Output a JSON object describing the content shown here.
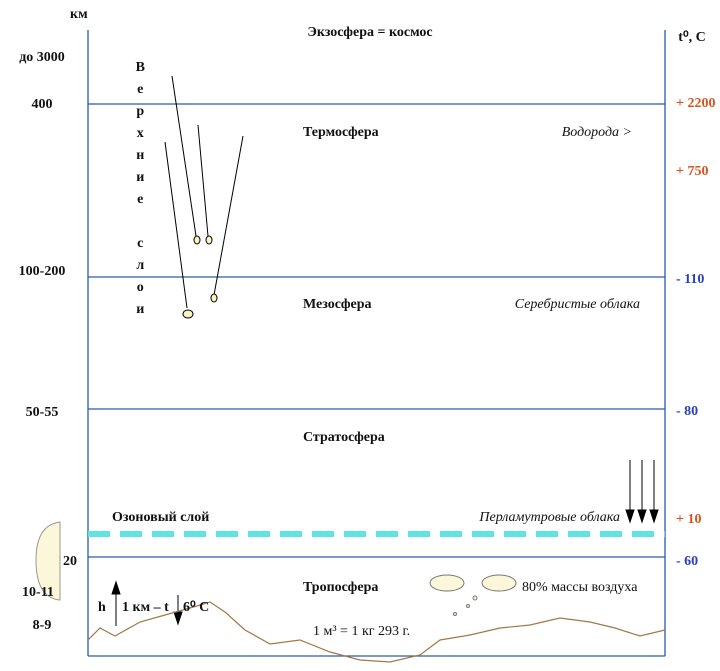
{
  "header": {
    "unit_left": "км",
    "unit_right": "t⁰, С",
    "top_left": "до 3000",
    "top_title": "Экзосфера = космос"
  },
  "left_labels": [
    "400",
    "100-200",
    "50-55",
    "20",
    "10-11",
    "8-9"
  ],
  "right_labels": [
    "+ 2200",
    "+ 750",
    "- 110",
    "- 80",
    "+ 10",
    "- 60"
  ],
  "vertical_text": "Верхние слои",
  "layers": [
    {
      "name": "Термосфера",
      "note": "Водорода >"
    },
    {
      "name": "Мезосфера",
      "note": "Серебристые облака"
    },
    {
      "name": "Стратосфера"
    },
    {
      "name": "Озоновый слой",
      "note": "Перламутровые облака"
    },
    {
      "name": "Тропосфера",
      "note": "80% массы воздуха"
    }
  ],
  "gradient": {
    "h": "h",
    "per": "1 км – t",
    "delta": "6⁰ С"
  },
  "air_mass": "1 м³ = 1 кг 293 г."
}
